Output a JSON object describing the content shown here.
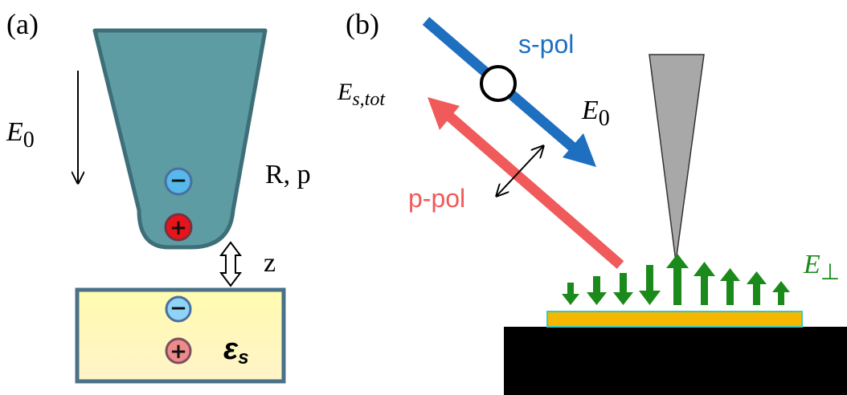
{
  "panel_a": {
    "label": "(a)",
    "field": {
      "main": "E",
      "sub": "0"
    },
    "tip_label": "R, p",
    "distance_label": "z",
    "tip_charges": {
      "minus": "−",
      "plus": "+"
    },
    "sample_charges": {
      "minus": "−",
      "plus": "+"
    },
    "sample_label": {
      "main": "ε",
      "sub": "s"
    }
  },
  "panel_b": {
    "label": "(b)",
    "s_pol": "s-pol",
    "p_pol": "p-pol",
    "incident_field": {
      "main": "E",
      "sub": "0"
    },
    "scattered_field": {
      "main": "E",
      "sub": "s,tot"
    },
    "near_field": {
      "main": "E",
      "sub": "⊥"
    }
  }
}
